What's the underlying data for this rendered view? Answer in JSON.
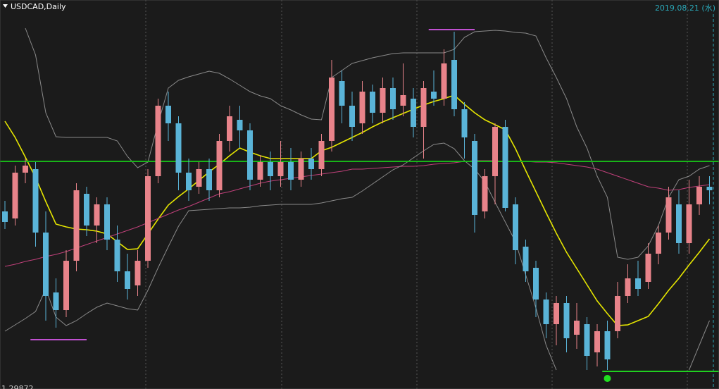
{
  "chart_data": {
    "type": "candlestick",
    "title": "USDCAD,Daily",
    "date_label": "2019.08.21 (水)",
    "up_color": "#e8838a",
    "down_color": "#5ab4d8",
    "ylim": [
      1.2987,
      1.3539
    ],
    "yticks": [
      1.29872
    ],
    "open": [
      1.3239,
      1.3229,
      1.3294,
      1.3299,
      1.3209,
      1.3124,
      1.3099,
      1.3169,
      1.3264,
      1.3219,
      1.3249,
      1.3199,
      1.3154,
      1.3134,
      1.3169,
      1.3289,
      1.3389,
      1.3364,
      1.3294,
      1.3274,
      1.3299,
      1.3269,
      1.3339,
      1.3369,
      1.3354,
      1.3284,
      1.3309,
      1.3289,
      1.3309,
      1.3284,
      1.3314,
      1.3299,
      1.3339,
      1.3424,
      1.3389,
      1.3364,
      1.3409,
      1.3379,
      1.3414,
      1.3389,
      1.3399,
      1.3359,
      1.3409,
      1.3399,
      1.3454,
      1.3384,
      1.3339,
      1.3239,
      1.3289,
      1.3359,
      1.3249,
      1.3189,
      1.3159,
      1.3114,
      1.3079,
      1.3109,
      1.3064,
      1.3079,
      1.3039,
      1.3069,
      1.3069,
      1.3119,
      1.3144,
      1.3139,
      1.3179,
      1.3209,
      1.3249,
      1.3194,
      1.3249,
      1.3274
    ],
    "high": [
      1.3254,
      1.3304,
      1.3314,
      1.3309,
      1.3239,
      1.3144,
      1.3184,
      1.3279,
      1.3274,
      1.3259,
      1.3259,
      1.3219,
      1.3179,
      1.3184,
      1.3299,
      1.3399,
      1.3409,
      1.3374,
      1.3314,
      1.3309,
      1.3314,
      1.3349,
      1.3389,
      1.3389,
      1.3364,
      1.3319,
      1.3324,
      1.3339,
      1.3329,
      1.3324,
      1.3329,
      1.3349,
      1.3454,
      1.3439,
      1.3409,
      1.3424,
      1.3419,
      1.3429,
      1.3429,
      1.3449,
      1.3414,
      1.3424,
      1.3439,
      1.3469,
      1.3494,
      1.3394,
      1.3349,
      1.3299,
      1.3364,
      1.3369,
      1.3259,
      1.3199,
      1.3169,
      1.3124,
      1.3119,
      1.3119,
      1.3109,
      1.3089,
      1.3079,
      1.3084,
      1.3139,
      1.3164,
      1.3169,
      1.3194,
      1.3219,
      1.3274,
      1.3269,
      1.3284,
      1.3289,
      1.3289
    ],
    "low": [
      1.3214,
      1.3219,
      1.3279,
      1.3189,
      1.3084,
      1.3074,
      1.3089,
      1.3154,
      1.3204,
      1.3194,
      1.3184,
      1.3139,
      1.3114,
      1.3119,
      1.3159,
      1.3279,
      1.3339,
      1.3269,
      1.3254,
      1.3264,
      1.3254,
      1.3259,
      1.3324,
      1.3329,
      1.3269,
      1.3274,
      1.3269,
      1.3274,
      1.3269,
      1.3274,
      1.3284,
      1.3289,
      1.3324,
      1.3364,
      1.3339,
      1.3349,
      1.3364,
      1.3364,
      1.3369,
      1.3374,
      1.3344,
      1.3314,
      1.3389,
      1.3389,
      1.3374,
      1.3314,
      1.3209,
      1.3229,
      1.3249,
      1.3239,
      1.3164,
      1.3139,
      1.3089,
      1.3059,
      1.3049,
      1.3039,
      1.3044,
      1.3014,
      1.3019,
      1.3014,
      1.3059,
      1.3109,
      1.3119,
      1.3129,
      1.3164,
      1.3199,
      1.3179,
      1.3179,
      1.3234,
      1.3249
    ],
    "close": [
      1.3224,
      1.3294,
      1.3304,
      1.3209,
      1.3119,
      1.3099,
      1.3169,
      1.3269,
      1.3219,
      1.3249,
      1.3199,
      1.3154,
      1.3129,
      1.3169,
      1.3289,
      1.3389,
      1.3364,
      1.3294,
      1.3269,
      1.3299,
      1.3269,
      1.3339,
      1.3374,
      1.3354,
      1.3284,
      1.3309,
      1.3289,
      1.3309,
      1.3284,
      1.3314,
      1.3299,
      1.3339,
      1.3429,
      1.3389,
      1.3359,
      1.3409,
      1.3379,
      1.3414,
      1.3384,
      1.3404,
      1.3359,
      1.3414,
      1.3399,
      1.3449,
      1.3384,
      1.3344,
      1.3234,
      1.3289,
      1.3359,
      1.3244,
      1.3184,
      1.3154,
      1.3114,
      1.3079,
      1.3109,
      1.3059,
      1.3084,
      1.3034,
      1.3069,
      1.3029,
      1.3119,
      1.3144,
      1.3129,
      1.3179,
      1.3209,
      1.3259,
      1.3194,
      1.3249,
      1.3274,
      1.3269
    ],
    "lines": [
      {
        "color": "#e6e600",
        "values": [
          1.3367,
          1.3344,
          1.3316,
          1.3287,
          1.3253,
          1.3221,
          1.3217,
          1.3214,
          1.3213,
          1.3211,
          1.3207,
          1.3196,
          1.3185,
          1.3186,
          1.3207,
          1.3228,
          1.3248,
          1.326,
          1.3271,
          1.3283,
          1.3295,
          1.3306,
          1.3318,
          1.3329,
          1.3323,
          1.3318,
          1.3314,
          1.3314,
          1.3314,
          1.3314,
          1.3314,
          1.3325,
          1.333,
          1.3337,
          1.3344,
          1.3351,
          1.3359,
          1.3366,
          1.3372,
          1.3378,
          1.3384,
          1.339,
          1.3395,
          1.3399,
          1.3404,
          1.3391,
          1.3379,
          1.3369,
          1.3362,
          1.3355,
          1.3328,
          1.3297,
          1.3267,
          1.3237,
          1.3208,
          1.3181,
          1.3158,
          1.3135,
          1.3112,
          1.3094,
          1.3077,
          1.3078,
          1.3084,
          1.309,
          1.3108,
          1.3127,
          1.3144,
          1.3163,
          1.3181,
          1.32
        ]
      },
      {
        "color": "#c0407a",
        "values": [
          1.3161,
          1.3164,
          1.3168,
          1.3171,
          1.3175,
          1.3178,
          1.3182,
          1.3187,
          1.3192,
          1.3197,
          1.3202,
          1.3207,
          1.3212,
          1.3217,
          1.3223,
          1.3229,
          1.3235,
          1.3241,
          1.3246,
          1.3252,
          1.3258,
          1.3264,
          1.3267,
          1.3271,
          1.3275,
          1.3279,
          1.3282,
          1.3284,
          1.3286,
          1.3288,
          1.329,
          1.3292,
          1.3294,
          1.3296,
          1.3299,
          1.3299,
          1.33,
          1.3301,
          1.3302,
          1.3303,
          1.3303,
          1.3304,
          1.3306,
          1.3307,
          1.3308,
          1.331,
          1.3311,
          1.3311,
          1.3311,
          1.331,
          1.331,
          1.331,
          1.3309,
          1.3309,
          1.3308,
          1.3306,
          1.3304,
          1.3302,
          1.3299,
          1.3294,
          1.3289,
          1.3284,
          1.3279,
          1.3274,
          1.3272,
          1.3269,
          1.327,
          1.3273,
          1.3275,
          1.3277
        ]
      },
      {
        "color": "#8a8a8a",
        "values": [
          null,
          null,
          1.3499,
          1.3461,
          1.3379,
          1.3345,
          1.3344,
          1.3344,
          1.3344,
          1.3344,
          1.3344,
          1.3339,
          1.3317,
          1.3301,
          1.3309,
          1.3364,
          1.3414,
          1.3425,
          1.343,
          1.3434,
          1.3438,
          1.3435,
          1.3427,
          1.3418,
          1.3409,
          1.3403,
          1.3399,
          1.3389,
          1.3383,
          1.3376,
          1.337,
          1.3369,
          1.3429,
          1.3439,
          1.3449,
          1.3453,
          1.3457,
          1.346,
          1.3463,
          1.3464,
          1.3464,
          1.3464,
          1.3464,
          1.3464,
          1.3469,
          1.3486,
          1.3494,
          1.3495,
          1.3496,
          1.3495,
          1.3493,
          1.3492,
          1.3488,
          1.3457,
          1.3429,
          1.3399,
          1.3359,
          1.3329,
          1.3289,
          1.3259,
          1.3174,
          1.3171,
          1.3174,
          1.319,
          1.3219,
          1.3259,
          1.3284,
          1.3289,
          1.3299,
          1.3304
        ]
      },
      {
        "color": "#8a8a8a",
        "values": [
          1.3069,
          1.3078,
          1.3087,
          1.3097,
          1.3129,
          1.3089,
          1.3077,
          1.3084,
          1.3094,
          1.3103,
          1.3109,
          1.3105,
          1.3101,
          1.3099,
          1.3127,
          1.3159,
          1.3189,
          1.3218,
          1.324,
          1.3241,
          1.3242,
          1.3243,
          1.3244,
          1.3244,
          1.3245,
          1.3247,
          1.3248,
          1.3249,
          1.3249,
          1.3249,
          1.3249,
          1.3251,
          1.3254,
          1.3257,
          1.3259,
          1.3268,
          1.3278,
          1.3288,
          1.3298,
          1.3305,
          1.3315,
          1.3325,
          1.3334,
          1.3336,
          1.3328,
          1.3311,
          1.3299,
          1.3281,
          1.3252,
          1.3224,
          1.3196,
          1.3149,
          1.3102,
          1.3049,
          1.3014,
          null,
          null,
          null,
          null,
          null,
          null,
          null,
          null,
          null,
          null,
          null,
          null,
          1.3014,
          1.3049,
          1.3084
        ]
      }
    ],
    "levels": [
      {
        "value": 1.331,
        "color": "#18b418",
        "from": 0,
        "to": 69
      },
      {
        "value": 1.3497,
        "color": "#c050d0",
        "from": 42,
        "to": 45
      },
      {
        "value": 1.3057,
        "color": "#c050d0",
        "from": 3,
        "to": 7
      },
      {
        "value": 1.3012,
        "color": "#20d020",
        "from": 59,
        "to": 69
      }
    ],
    "markers": [
      {
        "index": 59,
        "value": 1.3002,
        "color": "#20e020"
      }
    ]
  }
}
